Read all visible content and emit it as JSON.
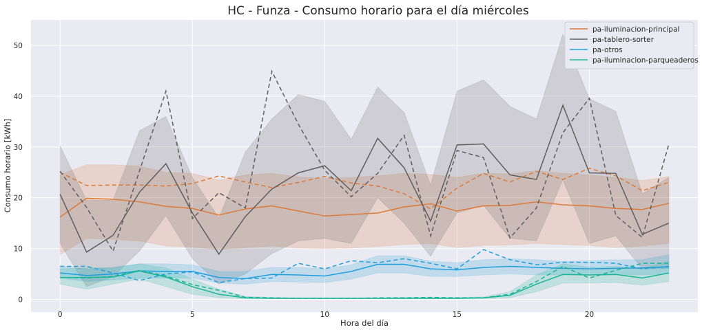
{
  "chart_data": {
    "type": "line",
    "title": "HC - Funza - Consumo horario para el día miércoles",
    "xlabel": "Hora del día",
    "ylabel": "Consumo horario [kWh]",
    "xlim": [
      -1.1,
      24.1
    ],
    "ylim": [
      -2.5,
      55
    ],
    "x_ticks": [
      0,
      5,
      10,
      15,
      20
    ],
    "y_ticks": [
      0,
      10,
      20,
      30,
      40,
      50
    ],
    "grid": true,
    "legend_position": "top-right",
    "x": [
      0,
      1,
      2,
      3,
      4,
      5,
      6,
      7,
      8,
      9,
      10,
      11,
      12,
      13,
      14,
      15,
      16,
      17,
      18,
      19,
      20,
      21,
      22,
      23
    ],
    "series": [
      {
        "name": "pa-iluminacion-principal",
        "color": "#DD7A37",
        "mean": [
          16.2,
          19.9,
          19.7,
          19.2,
          18.3,
          17.9,
          16.6,
          17.8,
          18.4,
          17.4,
          16.4,
          16.7,
          17.0,
          18.2,
          18.8,
          17.4,
          18.4,
          18.5,
          19.2,
          18.6,
          18.4,
          17.9,
          17.7,
          18.9
        ],
        "dashed": [
          25.0,
          22.4,
          22.5,
          22.5,
          22.3,
          22.8,
          24.3,
          23.1,
          22.0,
          23.0,
          24.2,
          22.9,
          22.3,
          20.8,
          17.8,
          21.9,
          24.8,
          23.1,
          25.2,
          23.6,
          25.8,
          24.3,
          21.4,
          23.0
        ],
        "band_low": [
          8.8,
          12.0,
          11.8,
          11.5,
          10.5,
          10.3,
          9.8,
          10.2,
          10.5,
          10.1,
          10.0,
          10.1,
          10.4,
          10.8,
          11.0,
          10.2,
          10.6,
          10.7,
          11.0,
          10.8,
          10.6,
          10.2,
          10.5,
          11.0
        ],
        "band_high": [
          24.5,
          26.5,
          26.5,
          26.2,
          25.0,
          24.8,
          23.5,
          24.5,
          24.8,
          24.1,
          23.8,
          24.0,
          24.3,
          24.8,
          24.6,
          24.0,
          24.8,
          24.7,
          25.3,
          24.8,
          24.5,
          24.0,
          23.4,
          24.2
        ]
      },
      {
        "name": "pa-tablero-sorter",
        "color": "#5E5E5E",
        "mean": [
          20.7,
          9.3,
          12.6,
          21.1,
          26.7,
          17.0,
          8.9,
          16.3,
          21.7,
          24.9,
          26.3,
          21.4,
          31.7,
          25.9,
          15.4,
          30.4,
          30.6,
          24.5,
          23.6,
          38.2,
          24.9,
          24.8,
          12.8,
          15.0
        ],
        "dashed": [
          25.2,
          18.1,
          9.5,
          25.3,
          41.0,
          15.9,
          21.0,
          18.0,
          44.9,
          34.5,
          25.4,
          20.2,
          24.8,
          32.3,
          12.5,
          29.3,
          27.9,
          12.1,
          18.0,
          32.8,
          39.6,
          16.5,
          12.2,
          30.5
        ],
        "band_low": [
          11.0,
          2.5,
          4.5,
          9.5,
          16.5,
          8.0,
          3.0,
          5.0,
          9.0,
          11.5,
          12.0,
          11.0,
          20.0,
          15.0,
          8.5,
          17.0,
          18.5,
          12.0,
          11.5,
          23.5,
          11.0,
          12.5,
          6.0,
          6.0
        ],
        "band_high": [
          30.2,
          19.5,
          19.5,
          33.2,
          36.0,
          24.0,
          16.0,
          29.0,
          35.5,
          40.3,
          39.0,
          31.5,
          41.8,
          36.8,
          22.5,
          41.0,
          43.2,
          38.0,
          35.5,
          52.2,
          39.5,
          37.0,
          20.8,
          24.0
        ]
      },
      {
        "name": "pa-otros",
        "color": "#1F9FDA",
        "mean": [
          5.2,
          4.7,
          5.0,
          5.6,
          5.5,
          5.5,
          4.3,
          4.1,
          4.9,
          4.8,
          4.6,
          5.5,
          6.9,
          6.9,
          6.0,
          5.8,
          6.3,
          6.5,
          6.3,
          6.1,
          6.0,
          6.1,
          6.2,
          6.4
        ],
        "dashed": [
          6.5,
          6.5,
          5.2,
          3.7,
          5.0,
          5.4,
          3.3,
          4.1,
          4.2,
          7.1,
          6.0,
          7.6,
          7.2,
          8.0,
          7.1,
          6.0,
          9.8,
          7.8,
          6.8,
          7.3,
          7.3,
          7.1,
          6.0,
          6.5
        ],
        "band_low": [
          4.2,
          3.5,
          3.8,
          4.2,
          4.2,
          4.2,
          3.2,
          3.0,
          3.5,
          3.4,
          3.3,
          4.0,
          5.2,
          5.2,
          4.5,
          4.5,
          4.8,
          5.0,
          4.8,
          4.8,
          4.8,
          4.8,
          4.8,
          5.0
        ],
        "band_high": [
          6.5,
          6.0,
          6.3,
          7.0,
          7.0,
          6.8,
          5.5,
          5.5,
          6.3,
          6.3,
          6.0,
          6.8,
          8.6,
          8.6,
          7.5,
          7.2,
          7.8,
          8.0,
          7.8,
          7.5,
          7.6,
          7.8,
          7.8,
          8.8
        ]
      },
      {
        "name": "pa-iluminacion-parqueaderos",
        "color": "#19B596",
        "mean": [
          4.3,
          4.3,
          4.4,
          5.6,
          4.4,
          2.5,
          1.0,
          0.3,
          0.2,
          0.2,
          0.2,
          0.2,
          0.2,
          0.2,
          0.2,
          0.2,
          0.3,
          0.8,
          3.0,
          4.9,
          4.8,
          4.9,
          4.2,
          5.2
        ],
        "dashed": [
          4.3,
          4.2,
          4.5,
          5.7,
          4.6,
          2.9,
          1.8,
          0.4,
          0.3,
          0.2,
          0.2,
          0.2,
          0.3,
          0.3,
          0.4,
          0.3,
          0.3,
          1.0,
          3.5,
          6.5,
          4.2,
          5.7,
          7.1,
          7.1
        ],
        "band_low": [
          3.0,
          2.0,
          3.0,
          4.0,
          2.5,
          1.0,
          0.3,
          0.1,
          0.1,
          0.1,
          0.1,
          0.1,
          0.1,
          0.1,
          0.1,
          0.1,
          0.1,
          0.3,
          1.5,
          3.2,
          3.2,
          3.3,
          2.8,
          3.5
        ],
        "band_high": [
          6.0,
          6.2,
          6.2,
          7.0,
          6.2,
          4.0,
          2.0,
          0.6,
          0.4,
          0.3,
          0.3,
          0.3,
          0.3,
          0.4,
          0.4,
          0.4,
          0.5,
          1.5,
          4.8,
          7.0,
          6.3,
          6.5,
          6.0,
          7.5
        ]
      }
    ]
  }
}
